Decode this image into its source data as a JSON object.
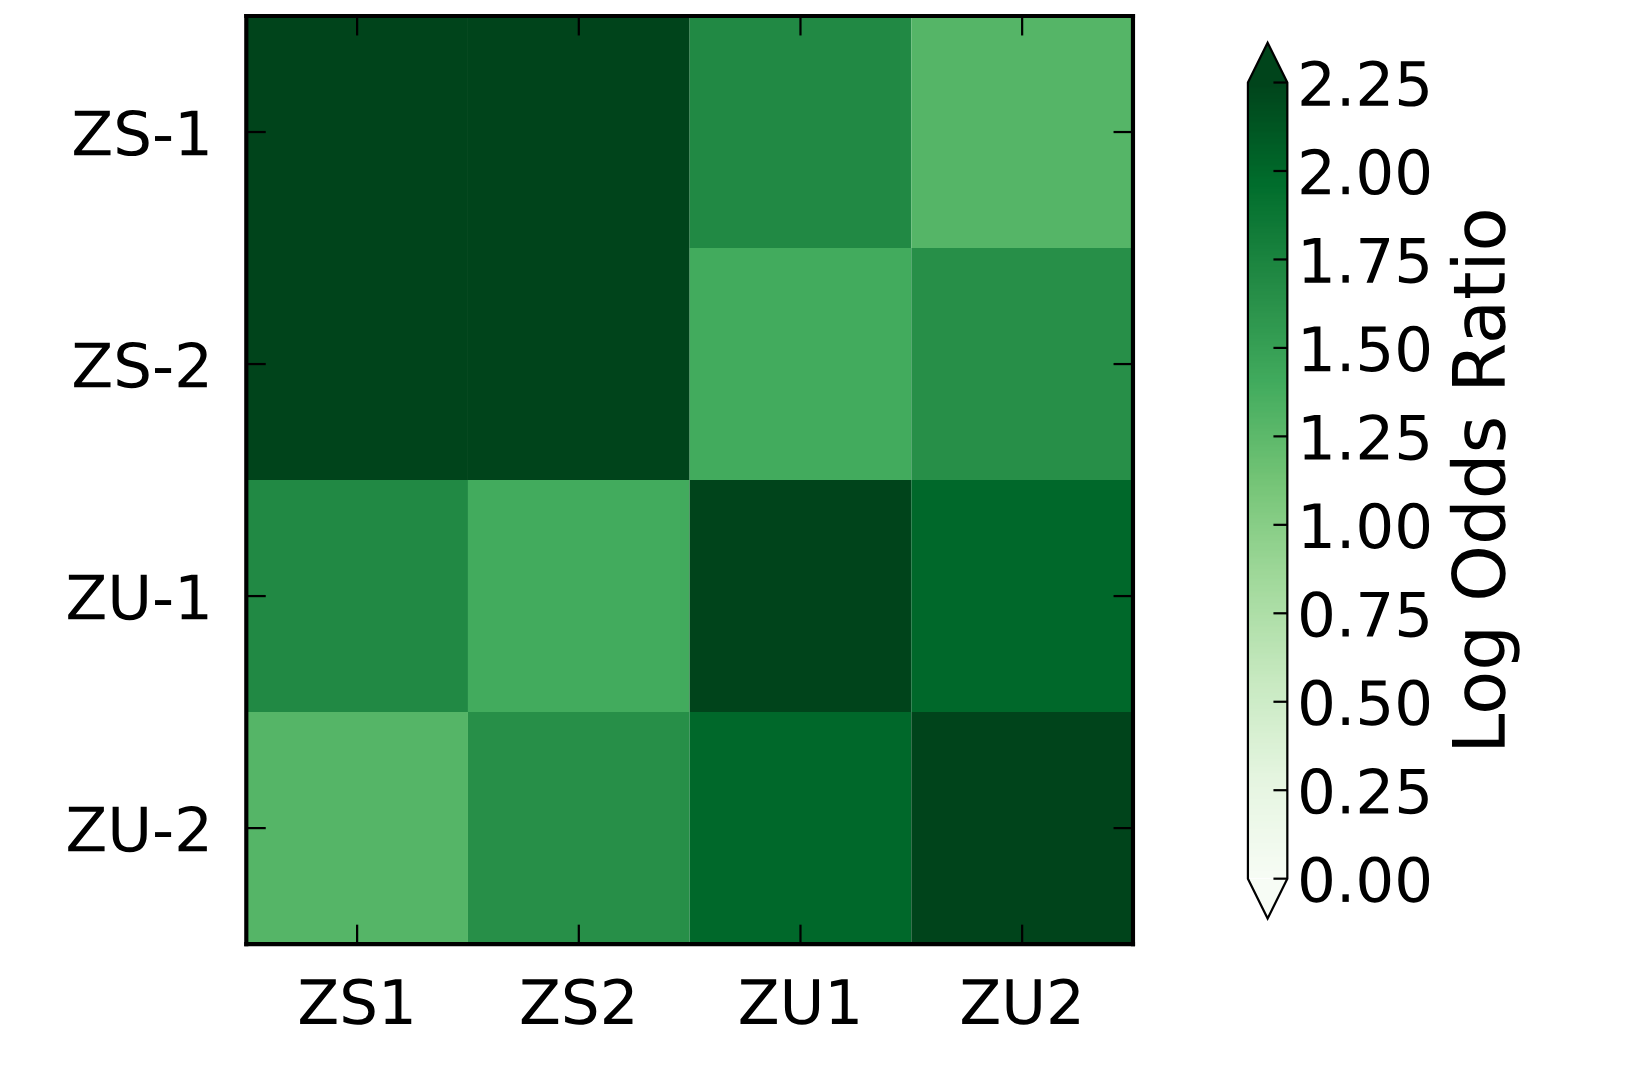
{
  "chart_data": {
    "type": "heatmap",
    "categories": [
      "ZS1",
      "ZS2",
      "ZU1",
      "ZU2"
    ],
    "y_categories": [
      "ZS-1",
      "ZS-2",
      "ZU-1",
      "ZU-2"
    ],
    "cells": [
      [
        2.3,
        2.3,
        1.7,
        1.3
      ],
      [
        2.3,
        2.3,
        1.4,
        1.65
      ],
      [
        1.7,
        1.4,
        2.3,
        2.0
      ],
      [
        1.3,
        1.65,
        2.0,
        2.3
      ]
    ],
    "clim": [
      0,
      2.25
    ],
    "cticks": [
      {
        "value": 0,
        "label": "0.00"
      },
      {
        "value": 0.25,
        "label": "0.25"
      },
      {
        "value": 0.5,
        "label": "0.50"
      },
      {
        "value": 0.75,
        "label": "0.75"
      },
      {
        "value": 1.0,
        "label": "1.00"
      },
      {
        "value": 1.25,
        "label": "1.25"
      },
      {
        "value": 1.5,
        "label": "1.50"
      },
      {
        "value": 1.75,
        "label": "1.75"
      },
      {
        "value": 2.0,
        "label": "2.00"
      },
      {
        "value": 2.25,
        "label": "2.25"
      }
    ],
    "clabel": "Log Odds Ratio"
  }
}
